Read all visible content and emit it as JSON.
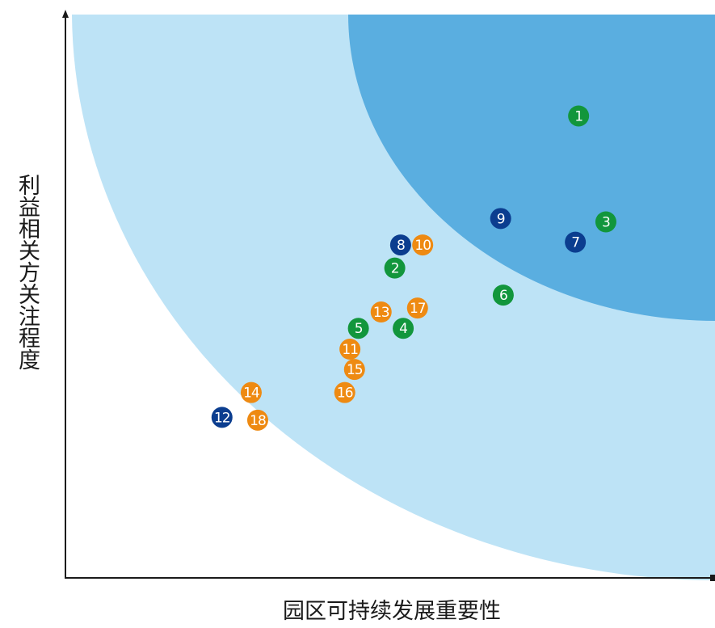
{
  "chart_data": {
    "type": "scatter",
    "xlabel": "园区可持续发展重要性",
    "ylabel": "利益相关方关注程度",
    "xlim": [
      0,
      100
    ],
    "ylim": [
      0,
      100
    ],
    "grid": false,
    "colors": {
      "green": "#12963c",
      "blue": "#0b3d8f",
      "orange": "#ee8a12",
      "zone_outer": "#bde3f6",
      "zone_inner": "#5aaee0"
    },
    "points": [
      {
        "label": "1",
        "x": 79.0,
        "y": 82.0,
        "color": "green"
      },
      {
        "label": "2",
        "x": 50.7,
        "y": 55.0,
        "color": "green"
      },
      {
        "label": "3",
        "x": 83.2,
        "y": 63.2,
        "color": "green"
      },
      {
        "label": "4",
        "x": 52.0,
        "y": 44.3,
        "color": "green"
      },
      {
        "label": "5",
        "x": 45.1,
        "y": 44.3,
        "color": "green"
      },
      {
        "label": "6",
        "x": 67.4,
        "y": 50.2,
        "color": "green"
      },
      {
        "label": "7",
        "x": 78.5,
        "y": 59.6,
        "color": "blue"
      },
      {
        "label": "8",
        "x": 51.6,
        "y": 59.1,
        "color": "blue"
      },
      {
        "label": "9",
        "x": 67.0,
        "y": 63.8,
        "color": "blue"
      },
      {
        "label": "10",
        "x": 55.0,
        "y": 59.1,
        "color": "orange"
      },
      {
        "label": "11",
        "x": 43.8,
        "y": 40.6,
        "color": "orange"
      },
      {
        "label": "12",
        "x": 24.1,
        "y": 28.5,
        "color": "blue"
      },
      {
        "label": "13",
        "x": 48.6,
        "y": 47.2,
        "color": "orange"
      },
      {
        "label": "14",
        "x": 28.6,
        "y": 32.9,
        "color": "orange"
      },
      {
        "label": "15",
        "x": 44.5,
        "y": 37.0,
        "color": "orange"
      },
      {
        "label": "16",
        "x": 43.0,
        "y": 32.9,
        "color": "orange"
      },
      {
        "label": "17",
        "x": 54.2,
        "y": 47.9,
        "color": "orange"
      },
      {
        "label": "18",
        "x": 29.6,
        "y": 28.0,
        "color": "orange"
      }
    ]
  }
}
